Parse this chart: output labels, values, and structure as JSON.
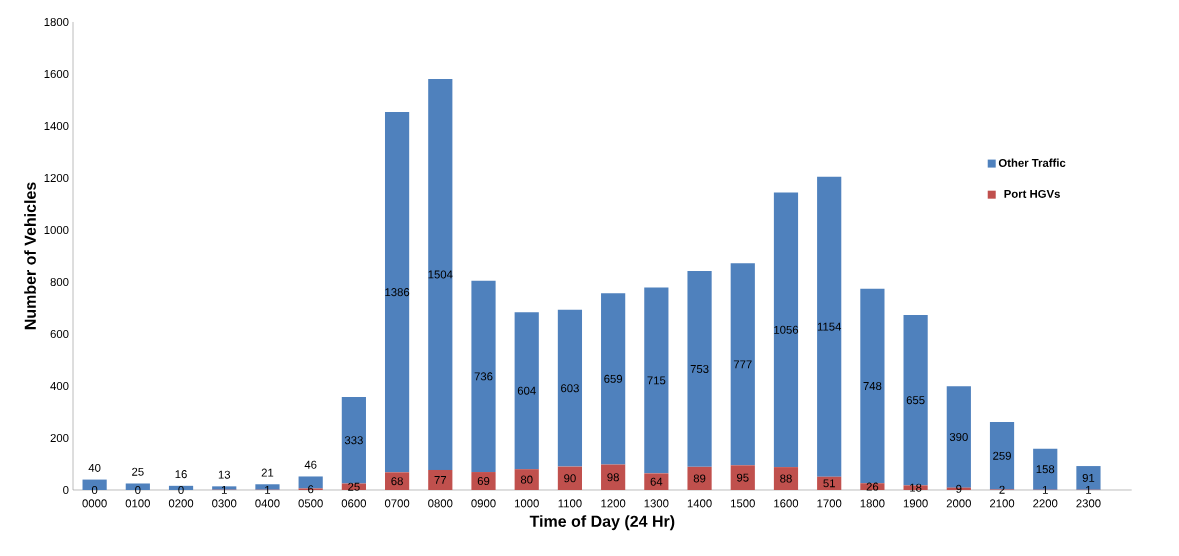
{
  "chart_data": {
    "type": "bar",
    "stacked": true,
    "xlabel": "Time of Day (24 Hr)",
    "ylabel": "Number of Vehicles",
    "categories": [
      "0000",
      "0100",
      "0200",
      "0300",
      "0400",
      "0500",
      "0600",
      "0700",
      "0800",
      "0900",
      "1000",
      "1100",
      "1200",
      "1300",
      "1400",
      "1500",
      "1600",
      "1700",
      "1800",
      "1900",
      "2000",
      "2100",
      "2200",
      "2300"
    ],
    "series": [
      {
        "name": "Port HGVs",
        "color": "#c0504d",
        "values": [
          0,
          0,
          0,
          1,
          1,
          6,
          25,
          68,
          77,
          69,
          80,
          90,
          98,
          64,
          89,
          95,
          88,
          51,
          26,
          18,
          9,
          2,
          1,
          1
        ]
      },
      {
        "name": "Other Traffic",
        "color": "#4f81bd",
        "values": [
          40,
          25,
          16,
          13,
          21,
          46,
          333,
          1386,
          1504,
          736,
          604,
          603,
          659,
          715,
          753,
          777,
          1056,
          1154,
          748,
          655,
          390,
          259,
          158,
          91
        ]
      }
    ],
    "ylim": [
      0,
      1800
    ],
    "yticks": [
      0,
      200,
      400,
      600,
      800,
      1000,
      1200,
      1400,
      1600,
      1800
    ],
    "data_labels": true,
    "legend": "right",
    "grid": false
  }
}
